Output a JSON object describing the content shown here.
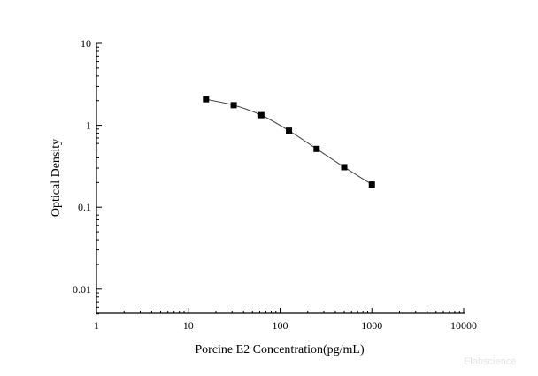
{
  "chart_data": {
    "type": "line",
    "title": "",
    "xlabel": "Porcine E2 Concentration(pg/mL)",
    "ylabel": "Optical Density",
    "xscale": "log",
    "yscale": "log",
    "xlim": [
      1,
      10000
    ],
    "ylim": [
      0.005,
      10
    ],
    "xticks": [
      "1",
      "10",
      "100",
      "1000",
      "10000"
    ],
    "yticks": [
      "0.01",
      "0.1",
      "1",
      "10"
    ],
    "grid": false,
    "marker": "square",
    "series": [
      {
        "x": [
          15.6,
          31.25,
          62.5,
          125,
          250,
          500,
          1000
        ],
        "y": [
          2.08,
          1.76,
          1.33,
          0.86,
          0.515,
          0.308,
          0.189
        ],
        "color": "#000000"
      }
    ]
  },
  "watermark": "Elabscience"
}
